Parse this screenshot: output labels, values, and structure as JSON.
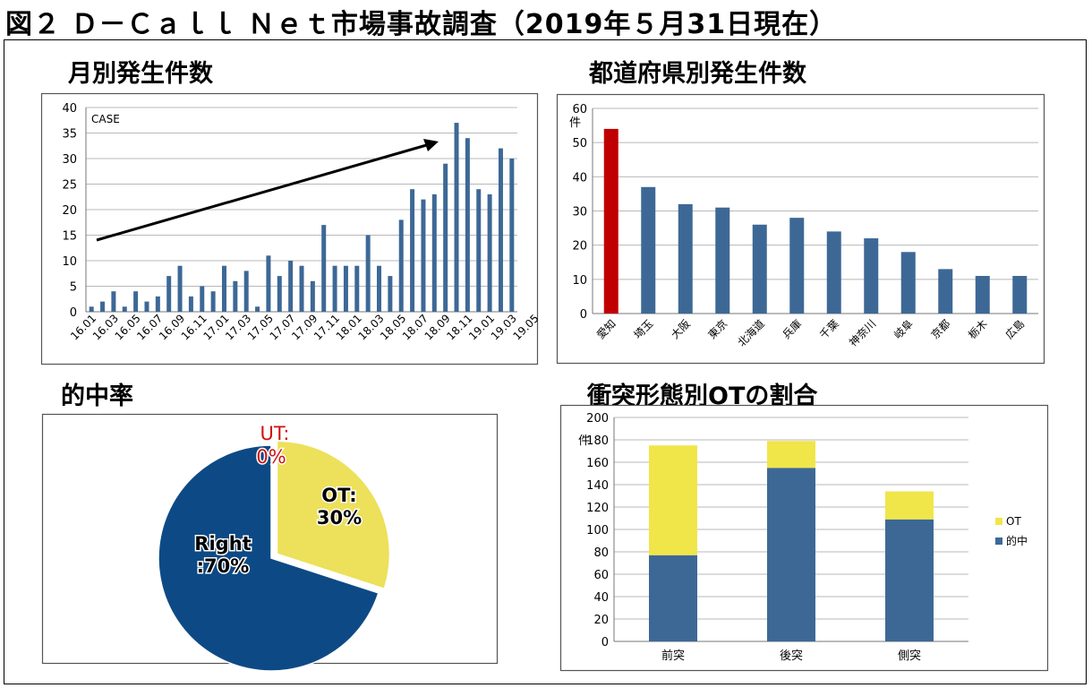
{
  "figure_title": "図２ Ｄ－Ｃａｌｌ Ｎｅｔ市場事故調査（2019年５月31日現在）",
  "chart_data": [
    {
      "id": "monthly",
      "type": "bar",
      "title": "月別発生件数",
      "ylabel": "CASE",
      "ylim": [
        0,
        40
      ],
      "yticks": [
        0,
        5,
        10,
        15,
        20,
        25,
        30,
        35,
        40
      ],
      "tick_labels": [
        "16.01",
        "16.03",
        "16.05",
        "16.07",
        "16.09",
        "16.11",
        "17.01",
        "17.03",
        "17.05",
        "17.07",
        "17.09",
        "17.11",
        "18.01",
        "18.03",
        "18.05",
        "18.07",
        "18.09",
        "18.11",
        "19.01",
        "19.03",
        "19.05"
      ],
      "values": [
        1,
        2,
        4,
        1,
        4,
        2,
        3,
        7,
        9,
        3,
        5,
        4,
        9,
        6,
        8,
        1,
        11,
        7,
        10,
        9,
        6,
        17,
        9,
        9,
        9,
        15,
        9,
        7,
        18,
        24,
        22,
        23,
        29,
        37,
        34,
        24,
        23,
        32,
        30
      ],
      "annotations": [
        "trend arrow (increasing)"
      ],
      "grid": true
    },
    {
      "id": "prefecture",
      "type": "bar",
      "title": "都道府県別発生件数",
      "ylabel": "件",
      "ylim": [
        0,
        60
      ],
      "yticks": [
        0,
        10,
        20,
        30,
        40,
        50,
        60
      ],
      "categories": [
        "愛知",
        "埼玉",
        "大阪",
        "東京",
        "北海道",
        "兵庫",
        "千葉",
        "神奈川",
        "岐阜",
        "京都",
        "栃木",
        "広島"
      ],
      "values": [
        54,
        37,
        32,
        31,
        26,
        28,
        24,
        22,
        18,
        13,
        11,
        11
      ],
      "highlight": "愛知",
      "grid": true
    },
    {
      "id": "hitrate",
      "type": "pie",
      "title": "的中率",
      "slices": [
        {
          "label": "Right",
          "text": "Right\n:70%",
          "value": 70
        },
        {
          "label": "OT",
          "text": "OT:\n30%",
          "value": 30
        },
        {
          "label": "UT",
          "text": "UT:\n0%",
          "value": 0
        }
      ]
    },
    {
      "id": "collision",
      "type": "bar",
      "stacked": true,
      "title": "衝突形態別OTの割合",
      "ylabel": "件",
      "ylim": [
        0,
        200
      ],
      "yticks": [
        0,
        20,
        40,
        60,
        80,
        100,
        120,
        140,
        160,
        180,
        200
      ],
      "categories": [
        "前突",
        "後突",
        "側突"
      ],
      "series": [
        {
          "name": "的中",
          "values": [
            77,
            155,
            109
          ]
        },
        {
          "name": "OT",
          "values": [
            98,
            24,
            25
          ]
        }
      ],
      "legend": [
        "OT",
        "的中"
      ],
      "legend_position": "right",
      "grid": true
    }
  ],
  "colors": {
    "bar_blue": "#3d6896",
    "bar_red": "#c00000",
    "pie_blue": "#0d4a85",
    "pie_yellow": "#ede05a",
    "ut_red": "#cc1111",
    "stack_blue": "#3d6896",
    "stack_yellow": "#f0e64a",
    "grid": "#b8b8b8"
  }
}
